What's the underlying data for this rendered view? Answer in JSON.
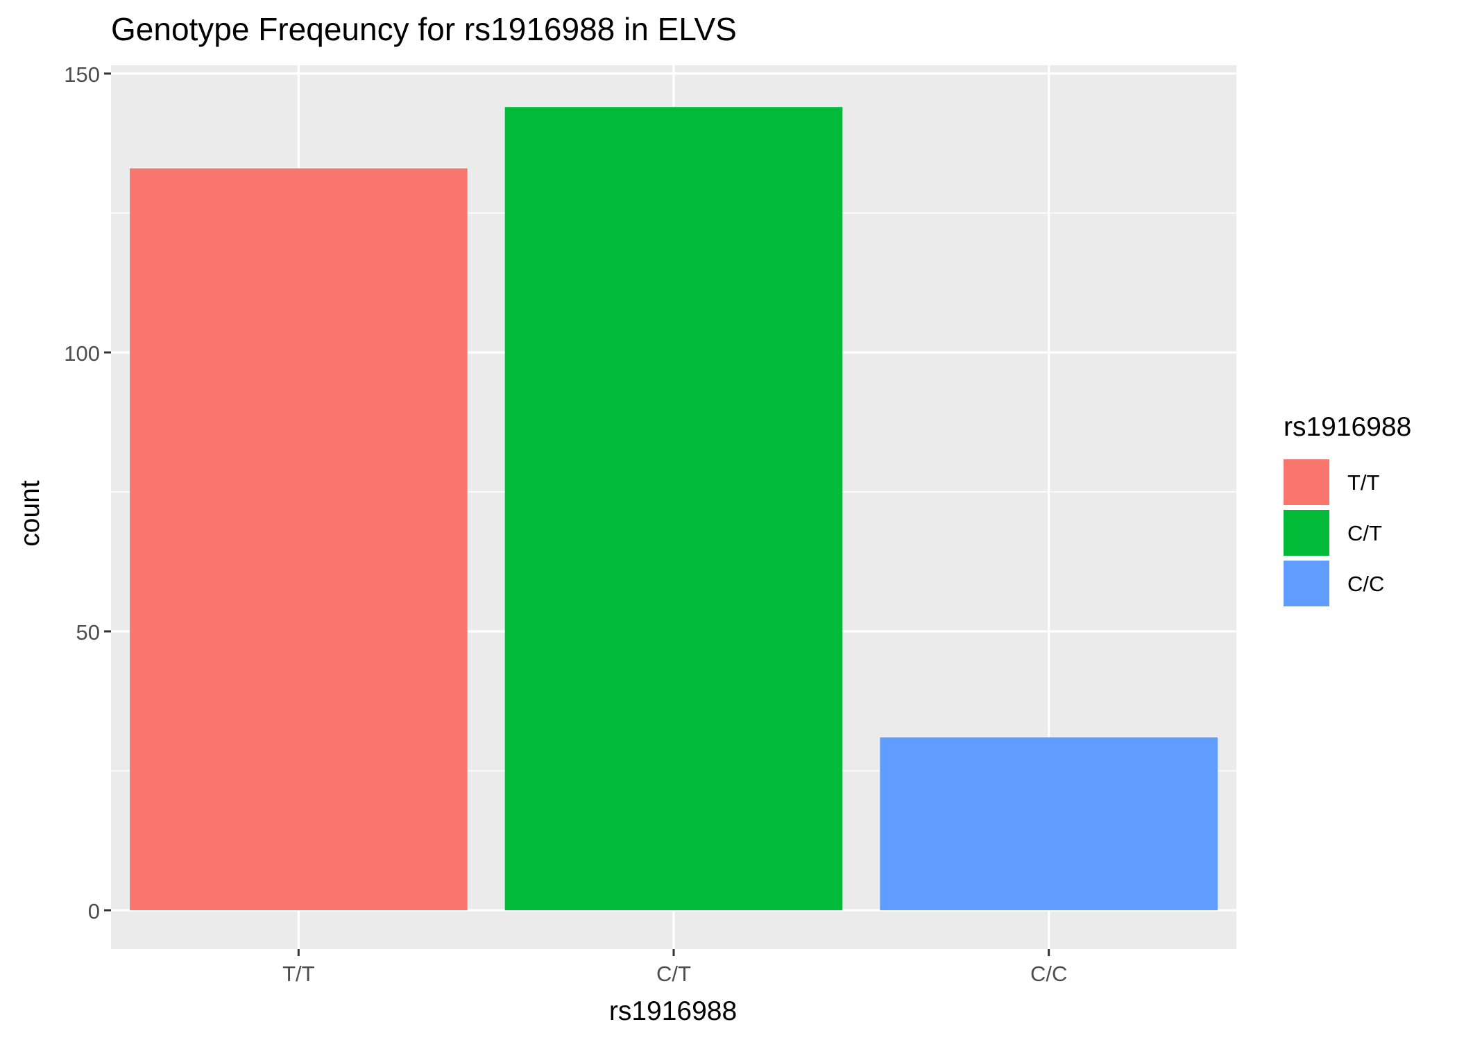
{
  "chart_data": {
    "type": "bar",
    "title": "Genotype Freqeuncy for rs1916988 in ELVS",
    "xlabel": "rs1916988",
    "ylabel": "count",
    "categories": [
      "T/T",
      "C/T",
      "C/C"
    ],
    "values": [
      133,
      144,
      31
    ],
    "ylim": [
      -7,
      150
    ],
    "y_ticks": [
      0,
      50,
      100,
      150
    ],
    "grid": true,
    "legend": {
      "title": "rs1916988",
      "placement": "right",
      "entries": [
        "T/T",
        "C/T",
        "C/C"
      ]
    },
    "colors": [
      "#F8766D",
      "#00BA38",
      "#619CFF"
    ],
    "panel_background": "#EBEBEB"
  }
}
